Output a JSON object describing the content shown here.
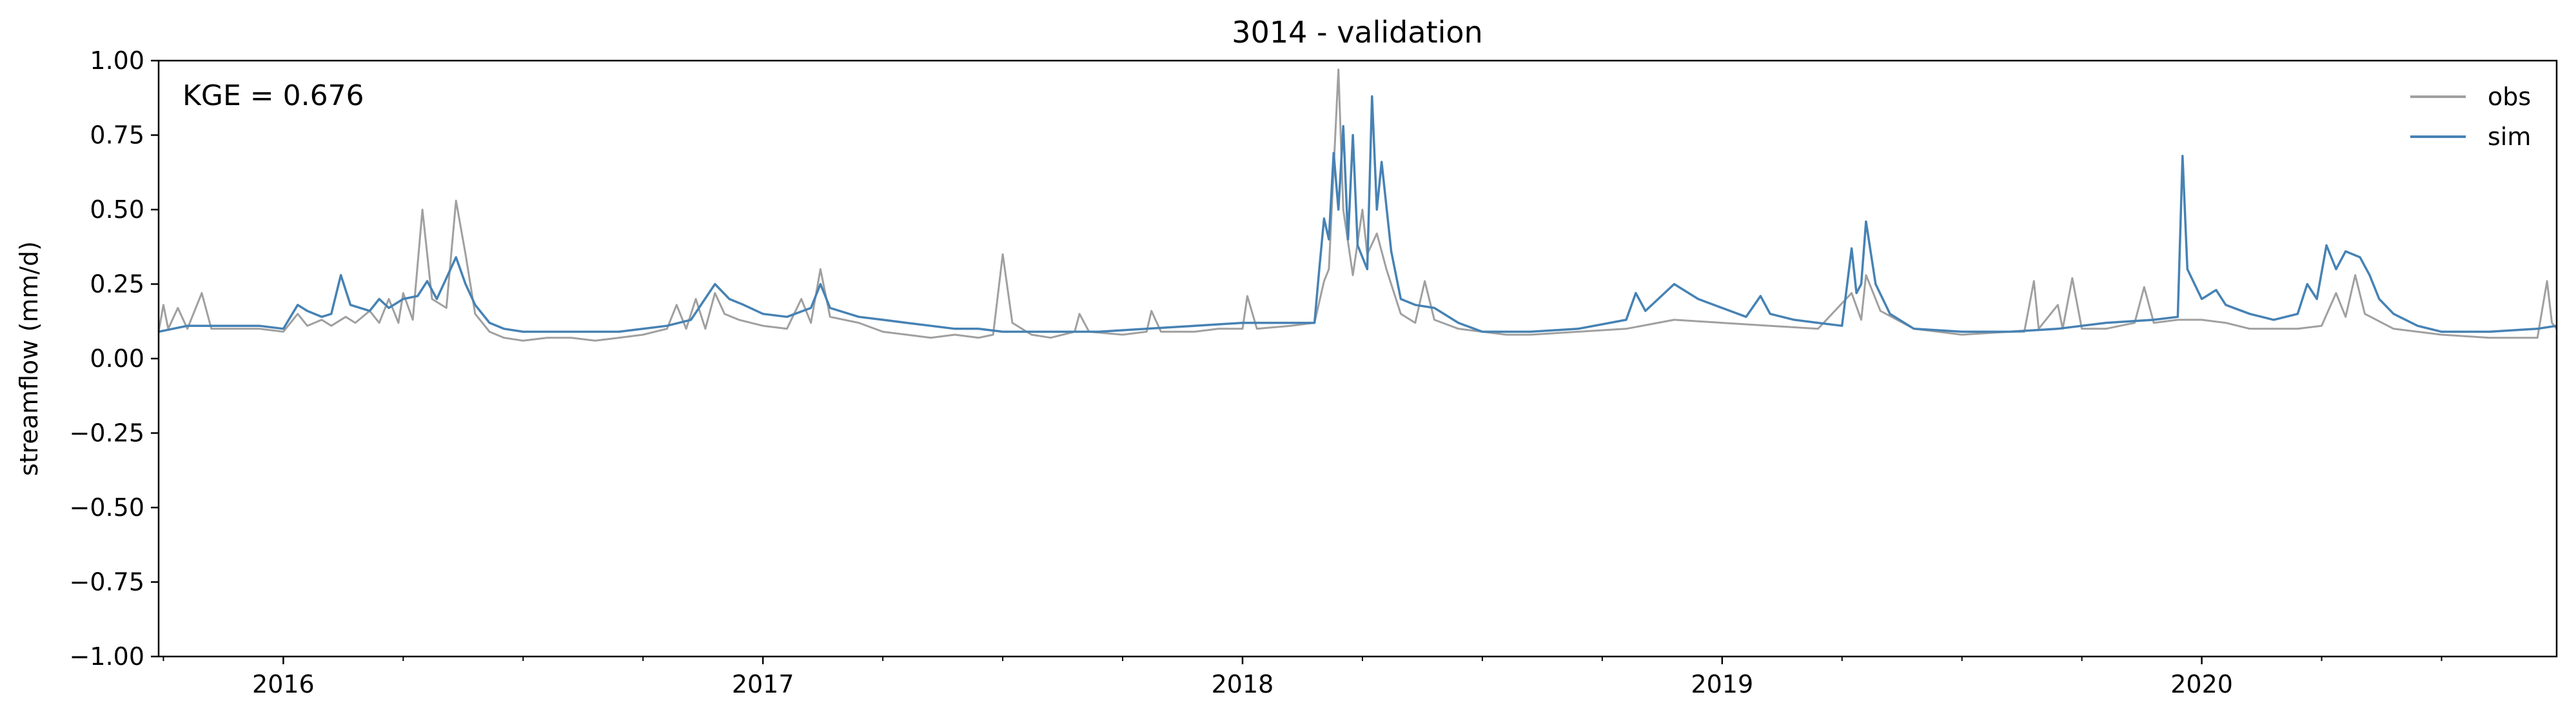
{
  "chart_data": {
    "type": "line",
    "title": "3014 - validation",
    "ylabel": "streamflow (mm/d)",
    "xlabel": "",
    "ylim": [
      -1.0,
      1.0
    ],
    "yticks": [
      1.0,
      0.75,
      0.5,
      0.25,
      0.0,
      -0.25,
      -0.5,
      -0.75,
      -1.0
    ],
    "ytick_labels": [
      "1.00",
      "0.75",
      "0.50",
      "0.25",
      "0.00",
      "−0.25",
      "−0.50",
      "−0.75",
      "−1.00"
    ],
    "xlim": [
      2015.74,
      2020.74
    ],
    "xticks": [
      2016.0,
      2017.0,
      2018.0,
      2019.0,
      2020.0
    ],
    "xtick_labels": [
      "2016",
      "2017",
      "2018",
      "2019",
      "2020"
    ],
    "x_minor_ticks": [
      2015.75,
      2016.25,
      2016.5,
      2016.75,
      2017.25,
      2017.5,
      2017.75,
      2018.25,
      2018.5,
      2018.75,
      2019.25,
      2019.5,
      2019.75,
      2020.25,
      2020.5
    ],
    "annotation": "KGE = 0.676",
    "legend_position": "top-right",
    "series": [
      {
        "name": "obs",
        "color": "#a0a0a0",
        "points": [
          [
            2015.74,
            0.09
          ],
          [
            2015.75,
            0.18
          ],
          [
            2015.76,
            0.1
          ],
          [
            2015.78,
            0.17
          ],
          [
            2015.8,
            0.1
          ],
          [
            2015.83,
            0.22
          ],
          [
            2015.85,
            0.1
          ],
          [
            2015.9,
            0.1
          ],
          [
            2015.95,
            0.1
          ],
          [
            2016.0,
            0.09
          ],
          [
            2016.03,
            0.15
          ],
          [
            2016.05,
            0.11
          ],
          [
            2016.08,
            0.13
          ],
          [
            2016.1,
            0.11
          ],
          [
            2016.13,
            0.14
          ],
          [
            2016.15,
            0.12
          ],
          [
            2016.18,
            0.16
          ],
          [
            2016.2,
            0.12
          ],
          [
            2016.22,
            0.2
          ],
          [
            2016.24,
            0.12
          ],
          [
            2016.25,
            0.22
          ],
          [
            2016.27,
            0.13
          ],
          [
            2016.29,
            0.5
          ],
          [
            2016.31,
            0.2
          ],
          [
            2016.34,
            0.17
          ],
          [
            2016.36,
            0.53
          ],
          [
            2016.38,
            0.35
          ],
          [
            2016.4,
            0.15
          ],
          [
            2016.43,
            0.09
          ],
          [
            2016.46,
            0.07
          ],
          [
            2016.5,
            0.06
          ],
          [
            2016.55,
            0.07
          ],
          [
            2016.6,
            0.07
          ],
          [
            2016.65,
            0.06
          ],
          [
            2016.7,
            0.07
          ],
          [
            2016.75,
            0.08
          ],
          [
            2016.8,
            0.1
          ],
          [
            2016.82,
            0.18
          ],
          [
            2016.84,
            0.1
          ],
          [
            2016.86,
            0.2
          ],
          [
            2016.88,
            0.1
          ],
          [
            2016.9,
            0.22
          ],
          [
            2016.92,
            0.15
          ],
          [
            2016.95,
            0.13
          ],
          [
            2017.0,
            0.11
          ],
          [
            2017.05,
            0.1
          ],
          [
            2017.08,
            0.2
          ],
          [
            2017.1,
            0.12
          ],
          [
            2017.12,
            0.3
          ],
          [
            2017.14,
            0.14
          ],
          [
            2017.2,
            0.12
          ],
          [
            2017.25,
            0.09
          ],
          [
            2017.3,
            0.08
          ],
          [
            2017.35,
            0.07
          ],
          [
            2017.4,
            0.08
          ],
          [
            2017.45,
            0.07
          ],
          [
            2017.48,
            0.08
          ],
          [
            2017.5,
            0.35
          ],
          [
            2017.52,
            0.12
          ],
          [
            2017.56,
            0.08
          ],
          [
            2017.6,
            0.07
          ],
          [
            2017.65,
            0.09
          ],
          [
            2017.66,
            0.15
          ],
          [
            2017.68,
            0.09
          ],
          [
            2017.75,
            0.08
          ],
          [
            2017.8,
            0.09
          ],
          [
            2017.81,
            0.16
          ],
          [
            2017.83,
            0.09
          ],
          [
            2017.9,
            0.09
          ],
          [
            2017.95,
            0.1
          ],
          [
            2018.0,
            0.1
          ],
          [
            2018.01,
            0.21
          ],
          [
            2018.03,
            0.1
          ],
          [
            2018.1,
            0.11
          ],
          [
            2018.15,
            0.12
          ],
          [
            2018.17,
            0.26
          ],
          [
            2018.18,
            0.3
          ],
          [
            2018.2,
            0.97
          ],
          [
            2018.21,
            0.5
          ],
          [
            2018.23,
            0.28
          ],
          [
            2018.25,
            0.5
          ],
          [
            2018.26,
            0.35
          ],
          [
            2018.28,
            0.42
          ],
          [
            2018.3,
            0.3
          ],
          [
            2018.33,
            0.15
          ],
          [
            2018.36,
            0.12
          ],
          [
            2018.38,
            0.26
          ],
          [
            2018.4,
            0.13
          ],
          [
            2018.45,
            0.1
          ],
          [
            2018.5,
            0.09
          ],
          [
            2018.55,
            0.08
          ],
          [
            2018.6,
            0.08
          ],
          [
            2018.7,
            0.09
          ],
          [
            2018.8,
            0.1
          ],
          [
            2018.9,
            0.13
          ],
          [
            2019.0,
            0.12
          ],
          [
            2019.1,
            0.11
          ],
          [
            2019.2,
            0.1
          ],
          [
            2019.27,
            0.22
          ],
          [
            2019.29,
            0.13
          ],
          [
            2019.3,
            0.28
          ],
          [
            2019.33,
            0.16
          ],
          [
            2019.4,
            0.1
          ],
          [
            2019.5,
            0.08
          ],
          [
            2019.6,
            0.09
          ],
          [
            2019.63,
            0.09
          ],
          [
            2019.65,
            0.26
          ],
          [
            2019.66,
            0.1
          ],
          [
            2019.7,
            0.18
          ],
          [
            2019.71,
            0.1
          ],
          [
            2019.73,
            0.27
          ],
          [
            2019.75,
            0.1
          ],
          [
            2019.8,
            0.1
          ],
          [
            2019.86,
            0.12
          ],
          [
            2019.88,
            0.24
          ],
          [
            2019.9,
            0.12
          ],
          [
            2019.95,
            0.13
          ],
          [
            2020.0,
            0.13
          ],
          [
            2020.05,
            0.12
          ],
          [
            2020.1,
            0.1
          ],
          [
            2020.2,
            0.1
          ],
          [
            2020.25,
            0.11
          ],
          [
            2020.28,
            0.22
          ],
          [
            2020.3,
            0.14
          ],
          [
            2020.32,
            0.28
          ],
          [
            2020.34,
            0.15
          ],
          [
            2020.4,
            0.1
          ],
          [
            2020.5,
            0.08
          ],
          [
            2020.6,
            0.07
          ],
          [
            2020.7,
            0.07
          ],
          [
            2020.72,
            0.26
          ],
          [
            2020.73,
            0.12
          ],
          [
            2020.74,
            0.1
          ]
        ]
      },
      {
        "name": "sim",
        "color": "#4682b4",
        "points": [
          [
            2015.74,
            0.09
          ],
          [
            2015.8,
            0.11
          ],
          [
            2015.85,
            0.11
          ],
          [
            2015.9,
            0.11
          ],
          [
            2015.95,
            0.11
          ],
          [
            2016.0,
            0.1
          ],
          [
            2016.03,
            0.18
          ],
          [
            2016.05,
            0.16
          ],
          [
            2016.08,
            0.14
          ],
          [
            2016.1,
            0.15
          ],
          [
            2016.12,
            0.28
          ],
          [
            2016.14,
            0.18
          ],
          [
            2016.18,
            0.16
          ],
          [
            2016.2,
            0.2
          ],
          [
            2016.22,
            0.17
          ],
          [
            2016.25,
            0.2
          ],
          [
            2016.28,
            0.21
          ],
          [
            2016.3,
            0.26
          ],
          [
            2016.32,
            0.2
          ],
          [
            2016.36,
            0.34
          ],
          [
            2016.38,
            0.25
          ],
          [
            2016.4,
            0.18
          ],
          [
            2016.43,
            0.12
          ],
          [
            2016.46,
            0.1
          ],
          [
            2016.5,
            0.09
          ],
          [
            2016.6,
            0.09
          ],
          [
            2016.7,
            0.09
          ],
          [
            2016.8,
            0.11
          ],
          [
            2016.85,
            0.13
          ],
          [
            2016.9,
            0.25
          ],
          [
            2016.93,
            0.2
          ],
          [
            2016.96,
            0.18
          ],
          [
            2017.0,
            0.15
          ],
          [
            2017.05,
            0.14
          ],
          [
            2017.1,
            0.17
          ],
          [
            2017.12,
            0.25
          ],
          [
            2017.14,
            0.17
          ],
          [
            2017.2,
            0.14
          ],
          [
            2017.25,
            0.13
          ],
          [
            2017.3,
            0.12
          ],
          [
            2017.35,
            0.11
          ],
          [
            2017.4,
            0.1
          ],
          [
            2017.45,
            0.1
          ],
          [
            2017.5,
            0.09
          ],
          [
            2017.6,
            0.09
          ],
          [
            2017.7,
            0.09
          ],
          [
            2017.8,
            0.1
          ],
          [
            2017.9,
            0.11
          ],
          [
            2018.0,
            0.12
          ],
          [
            2018.1,
            0.12
          ],
          [
            2018.15,
            0.12
          ],
          [
            2018.16,
            0.3
          ],
          [
            2018.17,
            0.47
          ],
          [
            2018.18,
            0.4
          ],
          [
            2018.19,
            0.69
          ],
          [
            2018.2,
            0.5
          ],
          [
            2018.21,
            0.78
          ],
          [
            2018.22,
            0.4
          ],
          [
            2018.23,
            0.75
          ],
          [
            2018.24,
            0.38
          ],
          [
            2018.26,
            0.3
          ],
          [
            2018.27,
            0.88
          ],
          [
            2018.28,
            0.5
          ],
          [
            2018.29,
            0.66
          ],
          [
            2018.31,
            0.36
          ],
          [
            2018.33,
            0.2
          ],
          [
            2018.36,
            0.18
          ],
          [
            2018.4,
            0.17
          ],
          [
            2018.45,
            0.12
          ],
          [
            2018.5,
            0.09
          ],
          [
            2018.6,
            0.09
          ],
          [
            2018.7,
            0.1
          ],
          [
            2018.8,
            0.13
          ],
          [
            2018.82,
            0.22
          ],
          [
            2018.84,
            0.16
          ],
          [
            2018.88,
            0.22
          ],
          [
            2018.9,
            0.25
          ],
          [
            2018.95,
            0.2
          ],
          [
            2019.0,
            0.17
          ],
          [
            2019.05,
            0.14
          ],
          [
            2019.08,
            0.21
          ],
          [
            2019.1,
            0.15
          ],
          [
            2019.15,
            0.13
          ],
          [
            2019.2,
            0.12
          ],
          [
            2019.25,
            0.11
          ],
          [
            2019.27,
            0.37
          ],
          [
            2019.28,
            0.22
          ],
          [
            2019.29,
            0.25
          ],
          [
            2019.3,
            0.46
          ],
          [
            2019.32,
            0.25
          ],
          [
            2019.35,
            0.15
          ],
          [
            2019.4,
            0.1
          ],
          [
            2019.5,
            0.09
          ],
          [
            2019.6,
            0.09
          ],
          [
            2019.7,
            0.1
          ],
          [
            2019.8,
            0.12
          ],
          [
            2019.9,
            0.13
          ],
          [
            2019.95,
            0.14
          ],
          [
            2019.96,
            0.68
          ],
          [
            2019.97,
            0.3
          ],
          [
            2020.0,
            0.2
          ],
          [
            2020.03,
            0.23
          ],
          [
            2020.05,
            0.18
          ],
          [
            2020.1,
            0.15
          ],
          [
            2020.15,
            0.13
          ],
          [
            2020.2,
            0.15
          ],
          [
            2020.22,
            0.25
          ],
          [
            2020.24,
            0.2
          ],
          [
            2020.26,
            0.38
          ],
          [
            2020.28,
            0.3
          ],
          [
            2020.3,
            0.36
          ],
          [
            2020.33,
            0.34
          ],
          [
            2020.35,
            0.28
          ],
          [
            2020.37,
            0.2
          ],
          [
            2020.4,
            0.15
          ],
          [
            2020.45,
            0.11
          ],
          [
            2020.5,
            0.09
          ],
          [
            2020.6,
            0.09
          ],
          [
            2020.7,
            0.1
          ],
          [
            2020.74,
            0.11
          ]
        ]
      }
    ]
  }
}
